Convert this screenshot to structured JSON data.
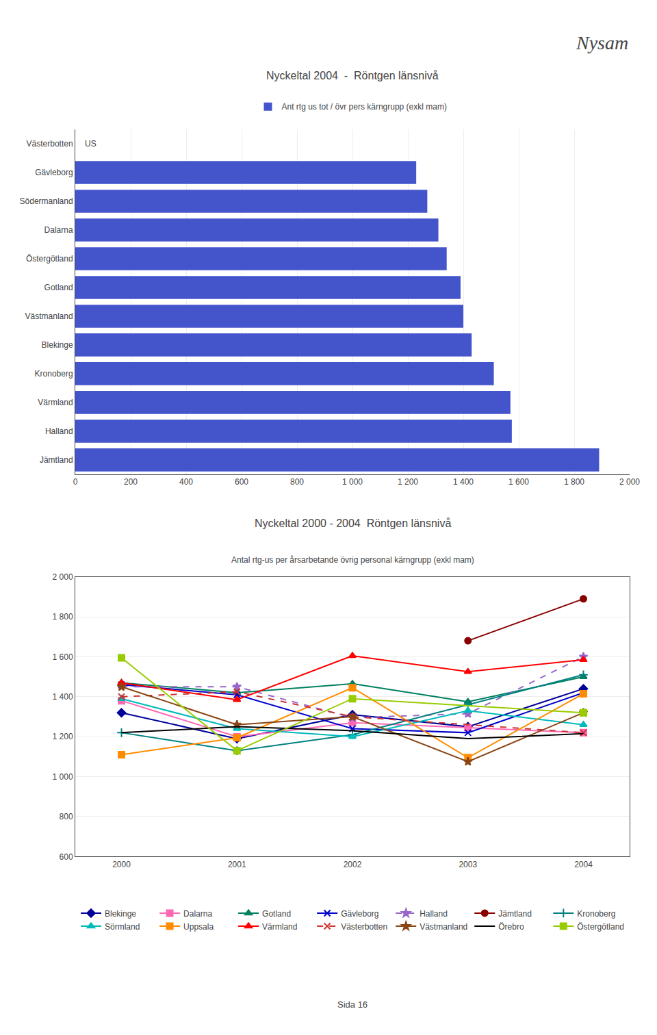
{
  "chart_data": [
    {
      "type": "bar",
      "title": "Nyckeltal 2004  -  Röntgen länsnivå",
      "orientation": "horizontal",
      "categories": [
        "Jämtland",
        "Halland",
        "Värmland",
        "Kronoberg",
        "Blekinge",
        "Västmanland",
        "Gotland",
        "Östergötland",
        "Dalarna",
        "Södermanland",
        "Gävleborg",
        "Västerbotten"
      ],
      "series": [
        {
          "name": "Ant rtg us tot / övr pers kärngrupp (exkl mam)",
          "color": "#4455CC",
          "values": [
            1890,
            1575,
            1570,
            1510,
            1430,
            1400,
            1390,
            1340,
            1310,
            1270,
            1230,
            0
          ]
        }
      ],
      "xlim": [
        0,
        2000
      ],
      "xticks": [
        0,
        200,
        400,
        600,
        800,
        {
          "value": 1000,
          "label": "1 000"
        },
        {
          "value": 1200,
          "label": "1 200"
        },
        {
          "value": 1400,
          "label": "1 400"
        },
        {
          "value": 1600,
          "label": "1 600"
        },
        {
          "value": 1800,
          "label": "1 800"
        },
        {
          "value": 2000,
          "label": "2 000"
        }
      ],
      "grid": true,
      "legend": "top",
      "annotations": [
        {
          "text": "US",
          "x": 30,
          "category": "Västerbotten"
        },
        {
          "text": "Nysam"
        }
      ]
    },
    {
      "type": "line",
      "title": "Nyckeltal 2000 - 2004  Röntgen länsnivå",
      "subtitle": "Antal rtg-us per årsarbetande övrig personal kärngrupp (exkl mam)",
      "x": [
        2000,
        2001,
        2002,
        2003,
        2004
      ],
      "xlim": [
        1999.6,
        2004.4
      ],
      "xticks": [
        2000,
        2001,
        2002,
        2003,
        2004
      ],
      "ylim": [
        600,
        2000
      ],
      "yticks": [
        600,
        800,
        {
          "value": 1000,
          "label": "1 000"
        },
        {
          "value": 1200,
          "label": "1 200"
        },
        {
          "value": 1400,
          "label": "1 400"
        },
        {
          "value": 1600,
          "label": "1 600"
        },
        {
          "value": 1800,
          "label": "1 800"
        },
        {
          "value": 2000,
          "label": "2 000"
        }
      ],
      "grid": true,
      "legend": "bottom",
      "series": [
        {
          "name": "Blekinge",
          "color": "#000099",
          "marker": "diamond",
          "line_style": "solid",
          "values": [
            1320,
            1190,
            1310,
            1250,
            1440
          ]
        },
        {
          "name": "Dalarna",
          "color": "#FF69B4",
          "marker": "square",
          "line_style": "solid",
          "values": [
            1380,
            1200,
            1270,
            1245,
            1220
          ]
        },
        {
          "name": "Gotland",
          "color": "#008060",
          "marker": "triangle-up",
          "line_style": "solid",
          "values": [
            1470,
            1420,
            1465,
            1375,
            1500
          ]
        },
        {
          "name": "Gävleborg",
          "color": "#0000CC",
          "marker": "x",
          "line_style": "solid",
          "values": [
            1460,
            1410,
            1240,
            1220,
            1420
          ]
        },
        {
          "name": "Halland",
          "color": "#9966CC",
          "marker": "star",
          "line_style": "dashed",
          "values": [
            1450,
            1450,
            1295,
            1315,
            1600
          ]
        },
        {
          "name": "Jämtland",
          "color": "#880000",
          "marker": "circle",
          "line_style": "solid",
          "values": [
            null,
            null,
            null,
            1680,
            1890
          ]
        },
        {
          "name": "Kronoberg",
          "color": "#008080",
          "marker": "cross",
          "line_style": "solid",
          "values": [
            1220,
            1130,
            1210,
            1360,
            1510
          ]
        },
        {
          "name": "Sörmland",
          "color": "#00BBBB",
          "marker": "triangle-up",
          "line_style": "solid",
          "values": [
            1390,
            1240,
            1200,
            1330,
            1260
          ]
        },
        {
          "name": "Uppsala",
          "color": "#FF8C00",
          "marker": "square",
          "line_style": "solid",
          "values": [
            1110,
            1195,
            1445,
            1095,
            1415
          ]
        },
        {
          "name": "Värmland",
          "color": "#FF0000",
          "marker": "triangle-up",
          "line_style": "solid",
          "values": [
            1470,
            1385,
            1605,
            1525,
            1585
          ]
        },
        {
          "name": "Västerbotten",
          "color": "#CC3333",
          "marker": "x",
          "line_style": "dashed",
          "values": [
            1400,
            1425,
            1300,
            null,
            1220
          ]
        },
        {
          "name": "Västmanland",
          "color": "#8B4513",
          "marker": "star",
          "line_style": "solid",
          "values": [
            1450,
            1260,
            1300,
            1075,
            1320
          ]
        },
        {
          "name": "Örebro",
          "color": "#000000",
          "marker": "none",
          "line_style": "solid",
          "values": [
            1220,
            1250,
            1230,
            1190,
            1215
          ]
        },
        {
          "name": "Östergötland",
          "color": "#99CC00",
          "marker": "square",
          "line_style": "solid",
          "values": [
            1595,
            1130,
            1390,
            null,
            1320
          ]
        }
      ],
      "annotations": [
        {
          "text": "Sida 16"
        }
      ]
    }
  ]
}
